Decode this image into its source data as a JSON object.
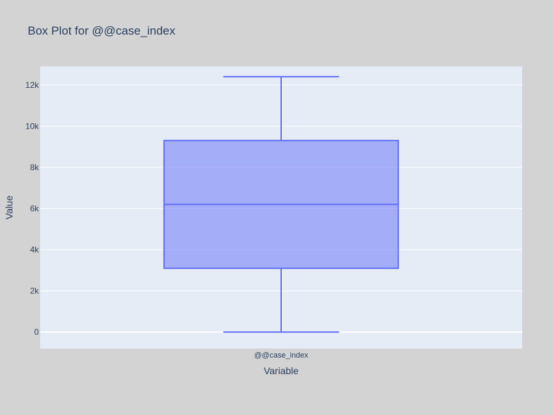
{
  "chart_data": {
    "type": "box",
    "title": "Box Plot for @@case_index",
    "xlabel": "Variable",
    "ylabel": "Value",
    "categories": [
      "@@case_index"
    ],
    "ylim": [
      -800,
      12900
    ],
    "yticks": [
      0,
      2000,
      4000,
      6000,
      8000,
      10000,
      12000
    ],
    "ytick_labels": [
      "0",
      "2k",
      "4k",
      "6k",
      "8k",
      "10k",
      "12k"
    ],
    "grid": true,
    "boxes": [
      {
        "category": "@@case_index",
        "min": 0,
        "q1": 3100,
        "median": 6200,
        "q3": 9300,
        "max": 12400
      }
    ],
    "colors": {
      "background": "#d3d3d3",
      "plot_background": "#e5ecf6",
      "grid": "#ffffff",
      "box_fill": "#636efa",
      "box_line": "#636efa",
      "text": "#2a3f5f"
    }
  }
}
